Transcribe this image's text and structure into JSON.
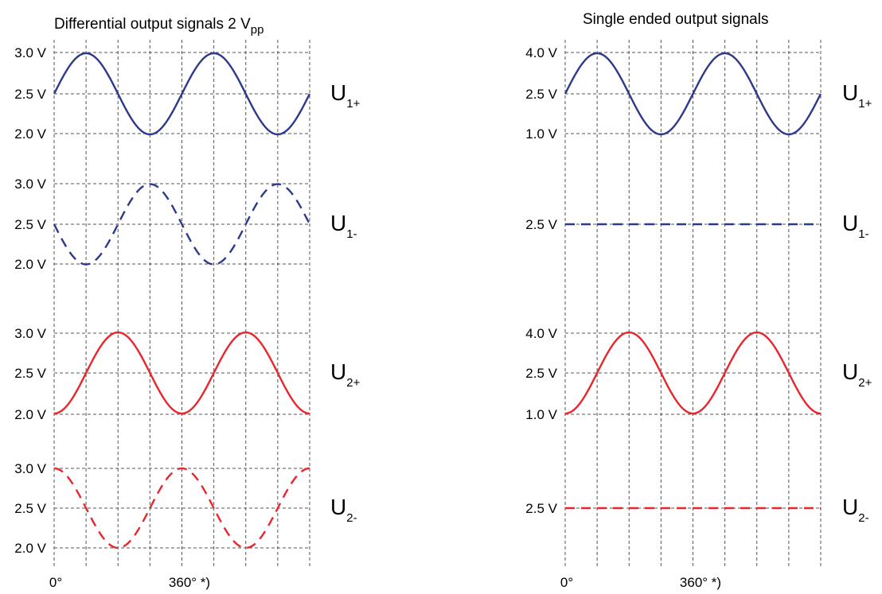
{
  "colors": {
    "blue": "#2d3a8c",
    "red": "#e8262d"
  },
  "panels": [
    {
      "id": "differential",
      "title": "Differential output signals 2 V",
      "title_sub": "pp",
      "x_start": "0°",
      "x_mid": "360° *)",
      "rows": [
        {
          "id": "u1p",
          "label": "U",
          "label_sub": "1+",
          "top_label": "3.0 V",
          "mid_label": "2.5 V",
          "bottom_label": "2.0 V",
          "color": "blue",
          "dashed": false,
          "phase_deg": 0,
          "amplitude": 1
        },
        {
          "id": "u1m",
          "label": "U",
          "label_sub": "1-",
          "top_label": "3.0 V",
          "mid_label": "2.5 V",
          "bottom_label": "2.0 V",
          "color": "blue",
          "dashed": true,
          "phase_deg": 180,
          "amplitude": 1
        },
        {
          "id": "u2p",
          "label": "U",
          "label_sub": "2+",
          "top_label": "3.0 V",
          "mid_label": "2.5 V",
          "bottom_label": "2.0 V",
          "color": "red",
          "dashed": false,
          "phase_deg": -90,
          "amplitude": 1
        },
        {
          "id": "u2m",
          "label": "U",
          "label_sub": "2-",
          "top_label": "3.0 V",
          "mid_label": "2.5 V",
          "bottom_label": "2.0 V",
          "color": "red",
          "dashed": true,
          "phase_deg": 90,
          "amplitude": 1
        }
      ]
    },
    {
      "id": "single",
      "title": "Single ended output signals",
      "title_sub": "",
      "x_start": "0°",
      "x_mid": "360° *)",
      "rows": [
        {
          "id": "u1p",
          "label": "U",
          "label_sub": "1+",
          "top_label": "4.0 V",
          "mid_label": "2.5 V",
          "bottom_label": "1.0 V",
          "color": "blue",
          "dashed": false,
          "phase_deg": 0,
          "amplitude": 1
        },
        {
          "id": "u1m",
          "label": "U",
          "label_sub": "1-",
          "top_label": "",
          "mid_label": "2.5 V",
          "bottom_label": "",
          "color": "blue",
          "dashed": true,
          "phase_deg": 0,
          "amplitude": 0
        },
        {
          "id": "u2p",
          "label": "U",
          "label_sub": "2+",
          "top_label": "4.0 V",
          "mid_label": "2.5 V",
          "bottom_label": "1.0 V",
          "color": "red",
          "dashed": false,
          "phase_deg": -90,
          "amplitude": 1
        },
        {
          "id": "u2m",
          "label": "U",
          "label_sub": "2-",
          "top_label": "",
          "mid_label": "2.5 V",
          "bottom_label": "",
          "color": "red",
          "dashed": true,
          "phase_deg": 0,
          "amplitude": 0
        }
      ]
    }
  ]
}
